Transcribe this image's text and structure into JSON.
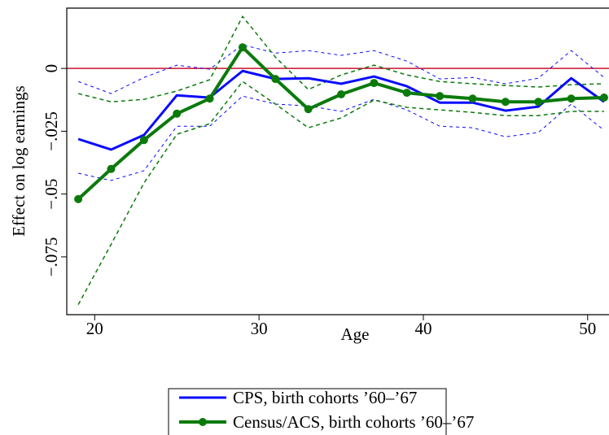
{
  "chart_data": {
    "type": "line",
    "x_label": "Age",
    "y_label": "Effect on log earnings",
    "x": [
      19,
      21,
      23,
      25,
      27,
      29,
      31,
      33,
      35,
      37,
      39,
      41,
      43,
      45,
      47,
      49,
      51
    ],
    "series": [
      {
        "name": "CPS, birth cohorts ’60–’67",
        "color": "#0a0aff",
        "marker": false,
        "values": [
          -0.0281,
          -0.0323,
          -0.0265,
          -0.0107,
          -0.0116,
          -0.001,
          -0.0042,
          -0.0039,
          -0.0061,
          -0.0032,
          -0.0071,
          -0.0136,
          -0.0136,
          -0.0168,
          -0.0152,
          -0.0039,
          -0.0133
        ],
        "upper": [
          -0.0052,
          -0.01,
          -0.0036,
          0.0013,
          -0.0003,
          0.0094,
          0.0061,
          0.0071,
          0.0052,
          0.0071,
          0.0029,
          -0.0042,
          -0.0036,
          -0.0061,
          -0.0039,
          0.0071,
          -0.0036
        ],
        "lower": [
          -0.0417,
          -0.0446,
          -0.0407,
          -0.023,
          -0.023,
          -0.011,
          -0.0142,
          -0.0149,
          -0.0171,
          -0.0123,
          -0.0165,
          -0.023,
          -0.0236,
          -0.0272,
          -0.0255,
          -0.0142,
          -0.0246
        ]
      },
      {
        "name": "Census/ACS, birth cohorts ’60–’67",
        "color": "#0b7a0b",
        "marker": true,
        "values": [
          -0.052,
          -0.04,
          -0.0285,
          -0.018,
          -0.012,
          0.0084,
          -0.0042,
          -0.0162,
          -0.0103,
          -0.0058,
          -0.0097,
          -0.011,
          -0.012,
          -0.0133,
          -0.0133,
          -0.012,
          -0.0116
        ],
        "upper": [
          -0.01,
          -0.0133,
          -0.0123,
          -0.009,
          -0.0045,
          0.0207,
          0.0045,
          -0.0084,
          -0.0026,
          0.0013,
          -0.0026,
          -0.0052,
          -0.0061,
          -0.0068,
          -0.0074,
          -0.0065,
          -0.0061
        ],
        "lower": [
          -0.094,
          -0.07,
          -0.0456,
          -0.0262,
          -0.022,
          -0.0052,
          -0.0142,
          -0.0236,
          -0.0197,
          -0.0126,
          -0.0155,
          -0.0165,
          -0.0175,
          -0.0188,
          -0.0188,
          -0.0171,
          -0.0171
        ]
      }
    ],
    "reference_line": 0,
    "reference_color": "#c8102e",
    "xlim": [
      18.3,
      51.3
    ],
    "ylim": [
      -0.098,
      0.024
    ],
    "xticks": [
      20,
      30,
      40,
      50
    ],
    "yticks": [
      0,
      {
        "value": -0.025,
        "label": "−.025"
      },
      {
        "value": -0.05,
        "label": "−.05"
      },
      {
        "value": -0.075,
        "label": "−.075"
      }
    ],
    "legend": "bottom"
  }
}
